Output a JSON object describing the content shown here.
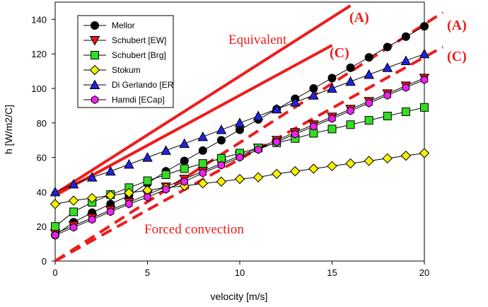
{
  "chart_data": {
    "type": "line",
    "title": "",
    "xlabel": "velocity [m/s]",
    "ylabel": "h [W/m2/C]",
    "xlim": [
      0,
      20
    ],
    "ylim": [
      0,
      150
    ],
    "xticks": [
      "0",
      "5",
      "10",
      "15",
      "20"
    ],
    "yticks": [
      "0",
      "20",
      "40",
      "60",
      "80",
      "100",
      "120",
      "140"
    ],
    "grid": false,
    "legend_position": "top-left",
    "x": [
      0,
      1,
      2,
      3,
      4,
      5,
      6,
      7,
      8,
      9,
      10,
      11,
      12,
      13,
      14,
      15,
      16,
      17,
      18,
      19,
      20
    ],
    "series": [
      {
        "name": "Mellor",
        "marker": "circle",
        "color": "#000000",
        "values": [
          15.0,
          22.5,
          28.0,
          33.0,
          38.0,
          45.0,
          52.0,
          58.0,
          64.0,
          70.0,
          76.0,
          82.0,
          88.0,
          94.0,
          100.0,
          106.0,
          112.0,
          118.0,
          124.0,
          130.0,
          136.0
        ]
      },
      {
        "name": "Schubert [EW]",
        "marker": "triangle-down",
        "color": "#e8141c",
        "values": [
          16.0,
          20.5,
          25.0,
          29.5,
          34.0,
          38.5,
          43.0,
          47.5,
          52.0,
          56.5,
          61.0,
          65.5,
          70.0,
          74.5,
          79.0,
          83.5,
          88.0,
          92.5,
          97.0,
          101.5,
          106.0
        ]
      },
      {
        "name": "Schubert [Brg]",
        "marker": "square",
        "color": "#33dd22",
        "values": [
          20.0,
          28.5,
          34.0,
          38.5,
          42.5,
          46.5,
          50.0,
          53.5,
          56.5,
          59.5,
          62.5,
          65.5,
          68.5,
          71.0,
          74.0,
          76.5,
          79.0,
          81.5,
          84.0,
          86.5,
          89.0
        ]
      },
      {
        "name": "Stokum",
        "marker": "diamond",
        "color": "#f2f200",
        "values": [
          33.0,
          35.0,
          36.5,
          38.0,
          39.5,
          41.0,
          42.5,
          43.5,
          45.0,
          46.0,
          47.5,
          48.5,
          50.5,
          52.0,
          53.5,
          55.0,
          56.5,
          58.0,
          59.5,
          61.0,
          62.5
        ]
      },
      {
        "name": "Di Gerlando [ER",
        "marker": "triangle-up",
        "color": "#2222dd",
        "values": [
          40.0,
          44.5,
          48.5,
          52.0,
          56.0,
          60.0,
          64.0,
          68.0,
          72.0,
          76.0,
          80.0,
          84.0,
          88.0,
          92.0,
          96.0,
          100.0,
          104.0,
          108.0,
          112.0,
          116.0,
          120.0
        ]
      },
      {
        "name": "Hamdi [ECap]",
        "marker": "hexagon",
        "color": "#ee22ee",
        "values": [
          15.0,
          19.5,
          24.0,
          28.5,
          33.0,
          37.0,
          41.5,
          46.0,
          51.0,
          55.5,
          60.0,
          64.5,
          69.0,
          73.5,
          78.0,
          82.5,
          87.0,
          91.5,
          96.0,
          100.5,
          105.0
        ]
      }
    ],
    "reference_lines": [
      {
        "label": "(A)",
        "style": "solid",
        "color": "#ee1c1c",
        "x": [
          0,
          16
        ],
        "y": [
          39,
          148
        ]
      },
      {
        "label": "(C)",
        "style": "solid",
        "color": "#ee1c1c",
        "x": [
          0,
          15
        ],
        "y": [
          38,
          125
        ]
      },
      {
        "label": "(A)",
        "style": "dashed",
        "color": "#ee1c1c",
        "x": [
          0,
          21
        ],
        "y": [
          0,
          144
        ]
      },
      {
        "label": "(C)",
        "style": "dashed",
        "color": "#ee1c1c",
        "x": [
          0,
          21
        ],
        "y": [
          0,
          124
        ]
      }
    ],
    "annotations": [
      {
        "text": "Equivalent",
        "color": "#ee1c1c"
      },
      {
        "text": "Forced convection",
        "color": "#ee1c1c"
      }
    ]
  }
}
